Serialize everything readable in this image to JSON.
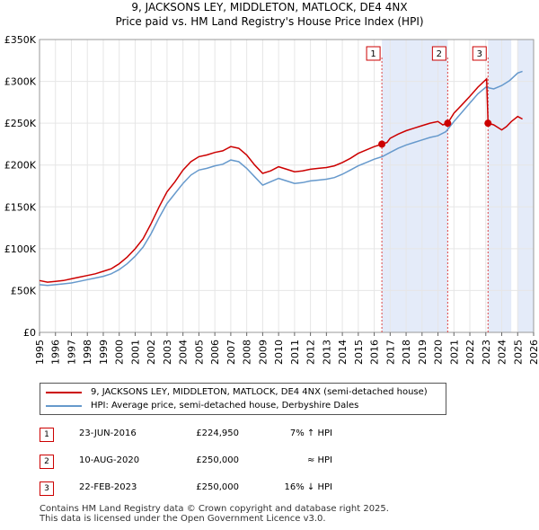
{
  "title_line1": "9, JACKSONS LEY, MIDDLETON, MATLOCK, DE4 4NX",
  "title_line2": "Price paid vs. HM Land Registry's House Price Index (HPI)",
  "colors": {
    "property": "#cc0000",
    "hpi": "#6699cc",
    "shade": "#dde6f7"
  },
  "chart_data": {
    "type": "line",
    "title": "Price paid vs. HM Land Registry's House Price Index (HPI)",
    "xlim": [
      1995,
      2026
    ],
    "ylim": [
      0,
      350000
    ],
    "x_ticks": [
      1995,
      1996,
      1997,
      1998,
      1999,
      2000,
      2001,
      2002,
      2003,
      2004,
      2005,
      2006,
      2007,
      2008,
      2009,
      2010,
      2011,
      2012,
      2013,
      2014,
      2015,
      2016,
      2017,
      2018,
      2019,
      2020,
      2021,
      2022,
      2023,
      2024,
      2025,
      2026
    ],
    "x_tick_labels": [
      "1995",
      "1996",
      "1997",
      "1998",
      "1999",
      "2000",
      "2001",
      "2002",
      "2003",
      "2004",
      "2005",
      "2006",
      "2007",
      "2008",
      "2009",
      "2010",
      "2011",
      "2012",
      "2013",
      "2014",
      "2015",
      "2016",
      "2017",
      "2018",
      "2019",
      "2020",
      "2021",
      "2022",
      "2023",
      "2024",
      "2025",
      "2026"
    ],
    "y_ticks": [
      0,
      50000,
      100000,
      150000,
      200000,
      250000,
      300000,
      350000
    ],
    "y_tick_labels": [
      "£0",
      "£50K",
      "£100K",
      "£150K",
      "£200K",
      "£250K",
      "£300K",
      "£350K"
    ],
    "shaded_periods": [
      [
        2016.48,
        2020.61
      ],
      [
        2023.14,
        2024.6
      ],
      [
        2025.0,
        2026.0
      ]
    ],
    "series": [
      {
        "name": "9, JACKSONS LEY, MIDDLETON, MATLOCK, DE4 4NX (semi-detached house)",
        "x": [
          1995,
          1995.5,
          1996,
          1996.5,
          1997,
          1997.5,
          1998,
          1998.5,
          1999,
          1999.5,
          2000,
          2000.5,
          2001,
          2001.5,
          2002,
          2002.5,
          2003,
          2003.5,
          2004,
          2004.5,
          2005,
          2005.5,
          2006,
          2006.5,
          2007,
          2007.5,
          2008,
          2008.5,
          2009,
          2009.5,
          2010,
          2010.5,
          2011,
          2011.5,
          2012,
          2012.5,
          2013,
          2013.5,
          2014,
          2014.5,
          2015,
          2015.5,
          2016,
          2016.48,
          2016.8,
          2017,
          2017.5,
          2018,
          2018.5,
          2019,
          2019.5,
          2020,
          2020.3,
          2020.61,
          2021,
          2021.5,
          2022,
          2022.5,
          2023.05,
          2023.14,
          2023.5,
          2024,
          2024.3,
          2024.6,
          2025,
          2025.3
        ],
        "values": [
          62000,
          60000,
          61000,
          62000,
          64000,
          66000,
          68000,
          70000,
          73000,
          76000,
          82000,
          90000,
          100000,
          112000,
          130000,
          150000,
          168000,
          180000,
          194000,
          204000,
          210000,
          212000,
          215000,
          217000,
          222000,
          220000,
          212000,
          200000,
          190000,
          193000,
          198000,
          195000,
          192000,
          193000,
          195000,
          196000,
          197000,
          199000,
          203000,
          208000,
          214000,
          218000,
          222000,
          224950,
          227000,
          232000,
          237000,
          241000,
          244000,
          247000,
          250000,
          252000,
          248000,
          250000,
          262000,
          272000,
          282000,
          293000,
          303000,
          250000,
          248000,
          242000,
          246000,
          252000,
          258000,
          255000
        ]
      },
      {
        "name": "HPI: Average price, semi-detached house, Derbyshire Dales",
        "x": [
          1995,
          1995.5,
          1996,
          1996.5,
          1997,
          1997.5,
          1998,
          1998.5,
          1999,
          1999.5,
          2000,
          2000.5,
          2001,
          2001.5,
          2002,
          2002.5,
          2003,
          2003.5,
          2004,
          2004.5,
          2005,
          2005.5,
          2006,
          2006.5,
          2007,
          2007.5,
          2008,
          2008.5,
          2009,
          2009.5,
          2010,
          2010.5,
          2011,
          2011.5,
          2012,
          2012.5,
          2013,
          2013.5,
          2014,
          2014.5,
          2015,
          2015.5,
          2016,
          2016.5,
          2017,
          2017.5,
          2018,
          2018.5,
          2019,
          2019.5,
          2020,
          2020.5,
          2021,
          2021.5,
          2022,
          2022.5,
          2023,
          2023.5,
          2024,
          2024.5,
          2025,
          2025.3
        ],
        "values": [
          57000,
          56000,
          57000,
          58000,
          59000,
          61000,
          63000,
          65000,
          67000,
          70000,
          75000,
          82000,
          91000,
          102000,
          118000,
          137000,
          154000,
          166000,
          178000,
          188000,
          194000,
          196000,
          199000,
          201000,
          206000,
          204000,
          196000,
          186000,
          176000,
          180000,
          184000,
          181000,
          178000,
          179000,
          181000,
          182000,
          183000,
          185000,
          189000,
          194000,
          199000,
          203000,
          207000,
          210000,
          215000,
          220000,
          224000,
          227000,
          230000,
          233000,
          235000,
          240000,
          252000,
          263000,
          274000,
          285000,
          293000,
          291000,
          295000,
          301000,
          310000,
          312000
        ]
      }
    ],
    "sales": [
      {
        "label": "1",
        "x": 2016.48,
        "value": 224950
      },
      {
        "label": "2",
        "x": 2020.61,
        "value": 250000
      },
      {
        "label": "3",
        "x": 2023.14,
        "value": 250000
      }
    ]
  },
  "legend": {
    "property_label": "9, JACKSONS LEY, MIDDLETON, MATLOCK, DE4 4NX (semi-detached house)",
    "hpi_label": "HPI: Average price, semi-detached house, Derbyshire Dales"
  },
  "sales_table": [
    {
      "num": "1",
      "date": "23-JUN-2016",
      "price": "£224,950",
      "hpi": "7% ↑ HPI"
    },
    {
      "num": "2",
      "date": "10-AUG-2020",
      "price": "£250,000",
      "hpi": "≈ HPI"
    },
    {
      "num": "3",
      "date": "22-FEB-2023",
      "price": "£250,000",
      "hpi": "16% ↓ HPI"
    }
  ],
  "footer_line1": "Contains HM Land Registry data © Crown copyright and database right 2025.",
  "footer_line2": "This data is licensed under the Open Government Licence v3.0."
}
